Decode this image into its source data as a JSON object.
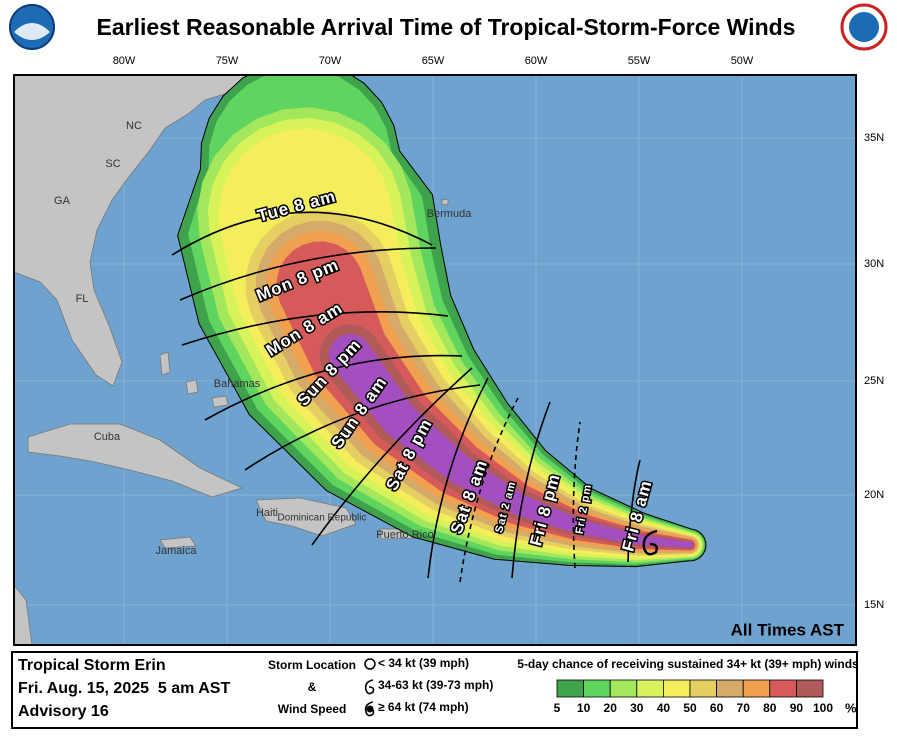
{
  "header": {
    "title": "Earliest Reasonable Arrival Time of Tropical-Storm-Force Winds"
  },
  "map": {
    "lon_labels": [
      "80W",
      "75W",
      "70W",
      "65W",
      "60W",
      "55W",
      "50W"
    ],
    "lat_labels": [
      "35N",
      "30N",
      "25N",
      "20N",
      "15N"
    ],
    "places": [
      "NC",
      "SC",
      "GA",
      "FL",
      "Bermuda",
      "Bahamas",
      "Cuba",
      "Haiti",
      "Dominican Republic",
      "Jamaica",
      "Puerto Rico"
    ],
    "time_labels": [
      "Tue 8 am",
      "Mon 8 pm",
      "Mon 8 am",
      "Sun 8 pm",
      "Sun 8 am",
      "Sat 8 pm",
      "Sat 8 am",
      "Sat 2 am",
      "Fri 8 pm",
      "Fri 2 pm",
      "Fri 8 am"
    ],
    "note": "All Times AST"
  },
  "legend": {
    "storm": {
      "name": "Tropical Storm Erin",
      "time": "Fri. Aug. 15, 2025  5 am AST",
      "advisory": "Advisory 16"
    },
    "symbols": {
      "title_lines": [
        "Storm Location",
        "&",
        "Wind Speed"
      ],
      "items": [
        "< 34 kt (39 mph)",
        "34-63 kt (39-73 mph)",
        "≥ 64 kt (74 mph)"
      ]
    },
    "probability": {
      "title": "5-day chance of receiving sustained 34+ kt (39+ mph) winds",
      "ticks": [
        5,
        10,
        20,
        30,
        40,
        50,
        60,
        70,
        80,
        90,
        100
      ],
      "unit": "%",
      "colors": [
        "#3fa34d",
        "#5fd45f",
        "#a3e85c",
        "#d8f25a",
        "#f4ee5c",
        "#e6cf62",
        "#d6aa68",
        "#f0a04e",
        "#d65a5a",
        "#b05a5a",
        "#a44fc0"
      ]
    }
  }
}
